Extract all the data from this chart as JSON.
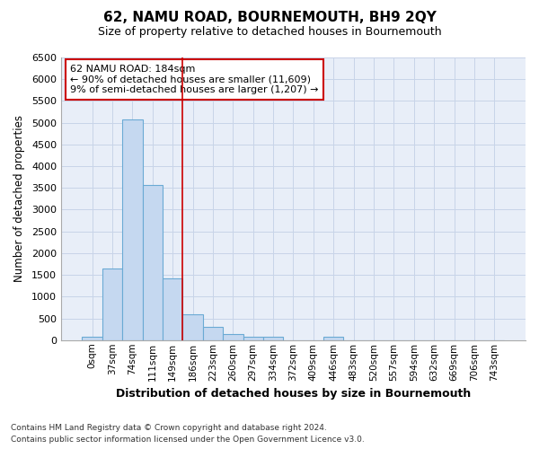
{
  "title": "62, NAMU ROAD, BOURNEMOUTH, BH9 2QY",
  "subtitle": "Size of property relative to detached houses in Bournemouth",
  "xlabel": "Distribution of detached houses by size in Bournemouth",
  "ylabel": "Number of detached properties",
  "footnote1": "Contains HM Land Registry data © Crown copyright and database right 2024.",
  "footnote2": "Contains public sector information licensed under the Open Government Licence v3.0.",
  "bin_labels": [
    "0sqm",
    "37sqm",
    "74sqm",
    "111sqm",
    "149sqm",
    "186sqm",
    "223sqm",
    "260sqm",
    "297sqm",
    "334sqm",
    "372sqm",
    "409sqm",
    "446sqm",
    "483sqm",
    "520sqm",
    "557sqm",
    "594sqm",
    "632sqm",
    "669sqm",
    "706sqm",
    "743sqm"
  ],
  "bar_values": [
    75,
    1650,
    5075,
    3575,
    1425,
    600,
    300,
    150,
    75,
    75,
    0,
    0,
    75,
    0,
    0,
    0,
    0,
    0,
    0,
    0,
    0
  ],
  "bar_color": "#c5d8f0",
  "bar_edgecolor": "#6aaad4",
  "ylim": [
    0,
    6500
  ],
  "yticks": [
    0,
    500,
    1000,
    1500,
    2000,
    2500,
    3000,
    3500,
    4000,
    4500,
    5000,
    5500,
    6000,
    6500
  ],
  "redline_bin_index": 5,
  "annotation_title": "62 NAMU ROAD: 184sqm",
  "annotation_line1": "← 90% of detached houses are smaller (11,609)",
  "annotation_line2": "9% of semi-detached houses are larger (1,207) →",
  "annotation_box_color": "#ffffff",
  "annotation_box_edgecolor": "#cc0000",
  "grid_color": "#c8d4e8",
  "bg_color": "#e8eef8",
  "fig_bg_color": "#ffffff"
}
